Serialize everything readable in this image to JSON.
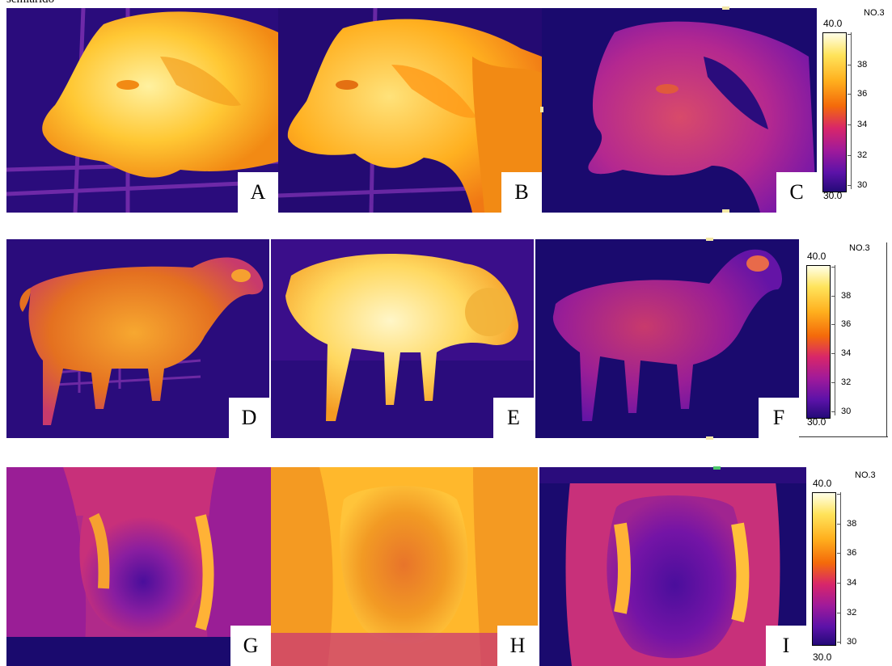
{
  "caption": "semiárido",
  "panels": [
    {
      "label": "A"
    },
    {
      "label": "B"
    },
    {
      "label": "C"
    },
    {
      "label": "D"
    },
    {
      "label": "E"
    },
    {
      "label": "F"
    },
    {
      "label": "G"
    },
    {
      "label": "H"
    },
    {
      "label": "I"
    }
  ],
  "scales": [
    {
      "max": "40.0",
      "min": "30.0",
      "id": "NO.3",
      "ticks": [
        "38",
        "36",
        "34",
        "32",
        "30"
      ]
    },
    {
      "max": "40.0",
      "min": "30.0",
      "id": "NO.3",
      "ticks": [
        "38",
        "36",
        "34",
        "32",
        "30"
      ]
    },
    {
      "max": "40.0",
      "min": "30.0",
      "id": "NO.3",
      "ticks": [
        "38",
        "36",
        "34",
        "32",
        "30"
      ]
    }
  ],
  "palette": {
    "background": "#1a0a6e",
    "hot": "#ffe680",
    "warm": "#f59c1e",
    "mid": "#d8266a",
    "cool": "#7d14a8"
  }
}
